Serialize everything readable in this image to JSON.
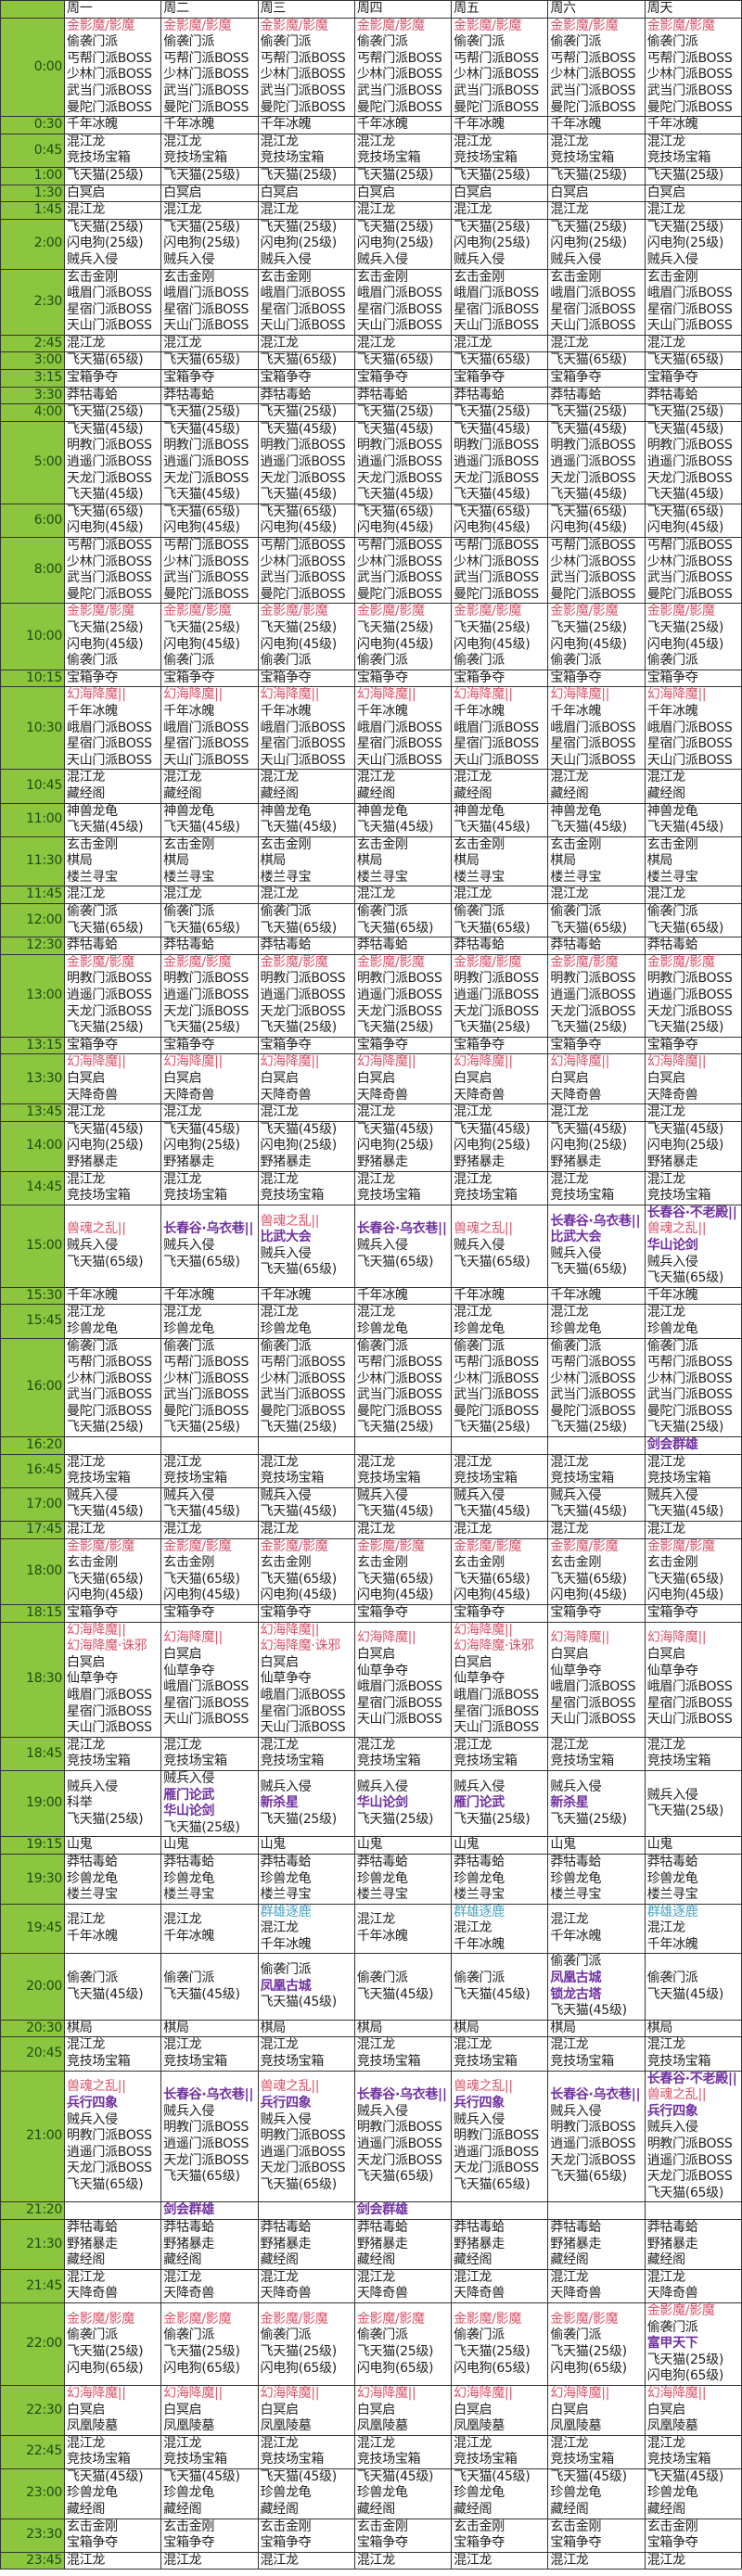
{
  "days": [
    "周一",
    "周二",
    "周三",
    "周四",
    "周五",
    "周六",
    "周天"
  ],
  "colors": {
    "red": "#d9546a",
    "purple": "#7030a0",
    "teal": "#4aa3c0",
    "time_column": "#8cc63e"
  },
  "highlight": {
    "金影魔/影魔": "red",
    "幻海降魔||": "red",
    "幻海降魔·诛邪": "red",
    "兽魂之乱||": "red",
    "长春谷·乌衣巷||": "purple",
    "长春谷·不老殿||": "purple",
    "比武大会": "purple",
    "华山论剑": "purple",
    "兵行四象": "purple",
    "剑会群雄": "purple",
    "雁门论武": "purple",
    "新杀星": "purple",
    "凤凰古城": "purple",
    "锁龙古塔": "purple",
    "富甲天下": "purple",
    "群雄逐鹿": "teal"
  },
  "rows": [
    {
      "time": "0:00",
      "same": [
        "金影魔/影魔",
        "偷袭门派",
        "丐帮门派BOSS",
        "少林门派BOSS",
        "武当门派BOSS",
        "曼陀门派BOSS"
      ]
    },
    {
      "time": "0:30",
      "same": [
        "千年冰魄"
      ]
    },
    {
      "time": "0:45",
      "same": [
        "混江龙",
        "竞技场宝箱"
      ]
    },
    {
      "time": "1:00",
      "same": [
        "飞天猫(25级)"
      ]
    },
    {
      "time": "1:30",
      "same": [
        "白冥启"
      ]
    },
    {
      "time": "1:45",
      "same": [
        "混江龙"
      ]
    },
    {
      "time": "2:00",
      "same": [
        "飞天猫(25级)",
        "闪电狗(25级)",
        "贼兵入侵"
      ]
    },
    {
      "time": "2:30",
      "same": [
        "玄击金刚",
        "峨眉门派BOSS",
        "星宿门派BOSS",
        "天山门派BOSS"
      ]
    },
    {
      "time": "2:45",
      "same": [
        "混江龙"
      ]
    },
    {
      "time": "3:00",
      "same": [
        "飞天猫(65级)"
      ]
    },
    {
      "time": "3:15",
      "same": [
        "宝箱争夺"
      ]
    },
    {
      "time": "3:30",
      "same": [
        "莽牯毒蛤"
      ]
    },
    {
      "time": "4:00",
      "same": [
        "飞天猫(25级)"
      ]
    },
    {
      "time": "5:00",
      "same": [
        "飞天猫(45级)",
        "明教门派BOSS",
        "逍遥门派BOSS",
        "天龙门派BOSS",
        "飞天猫(45级)"
      ]
    },
    {
      "time": "6:00",
      "same": [
        "飞天猫(65级)",
        "闪电狗(45级)"
      ]
    },
    {
      "time": "8:00",
      "same": [
        "丐帮门派BOSS",
        "少林门派BOSS",
        "武当门派BOSS",
        "曼陀门派BOSS"
      ]
    },
    {
      "time": "10:00",
      "same": [
        "金影魔/影魔",
        "飞天猫(25级)",
        "闪电狗(45级)",
        "偷袭门派"
      ]
    },
    {
      "time": "10:15",
      "same": [
        "宝箱争夺"
      ]
    },
    {
      "time": "10:30",
      "same": [
        "幻海降魔||",
        "千年冰魄",
        "峨眉门派BOSS",
        "星宿门派BOSS",
        "天山门派BOSS"
      ]
    },
    {
      "time": "10:45",
      "same": [
        "混江龙",
        "藏经阁"
      ]
    },
    {
      "time": "11:00",
      "same": [
        "神兽龙龟",
        "飞天猫(45级)"
      ]
    },
    {
      "time": "11:30",
      "same": [
        "玄击金刚",
        "棋局",
        "楼兰寻宝"
      ]
    },
    {
      "time": "11:45",
      "same": [
        "混江龙"
      ]
    },
    {
      "time": "12:00",
      "same": [
        "偷袭门派",
        "飞天猫(65级)"
      ]
    },
    {
      "time": "12:30",
      "same": [
        "莽牯毒蛤"
      ]
    },
    {
      "time": "13:00",
      "same": [
        "金影魔/影魔",
        "明教门派BOSS",
        "逍遥门派BOSS",
        "天龙门派BOSS",
        "飞天猫(25级)"
      ]
    },
    {
      "time": "13:15",
      "same": [
        "宝箱争夺"
      ]
    },
    {
      "time": "13:30",
      "same": [
        "幻海降魔||",
        "白冥启",
        "天降奇兽"
      ]
    },
    {
      "time": "13:45",
      "same": [
        "混江龙"
      ]
    },
    {
      "time": "14:00",
      "same": [
        "飞天猫(45级)",
        "闪电狗(25级)",
        "野猪暴走"
      ]
    },
    {
      "time": "14:45",
      "same": [
        "混江龙",
        "竞技场宝箱"
      ]
    },
    {
      "time": "15:00",
      "days": [
        [
          "兽魂之乱||",
          "贼兵入侵",
          "飞天猫(65级)"
        ],
        [
          "长春谷·乌衣巷||",
          "贼兵入侵",
          "飞天猫(65级)"
        ],
        [
          "兽魂之乱||",
          "比武大会",
          "贼兵入侵",
          "飞天猫(65级)"
        ],
        [
          "长春谷·乌衣巷||",
          "贼兵入侵",
          "飞天猫(65级)"
        ],
        [
          "兽魂之乱||",
          "贼兵入侵",
          "飞天猫(65级)"
        ],
        [
          "长春谷·乌衣巷||",
          "比武大会",
          "贼兵入侵",
          "飞天猫(65级)"
        ],
        [
          "长春谷·不老殿||",
          "兽魂之乱||",
          "华山论剑",
          "贼兵入侵",
          "飞天猫(65级)"
        ]
      ]
    },
    {
      "time": "15:30",
      "same": [
        "千年冰魄"
      ]
    },
    {
      "time": "15:45",
      "same": [
        "混江龙",
        "珍兽龙龟"
      ]
    },
    {
      "time": "16:00",
      "same": [
        "偷袭门派",
        "丐帮门派BOSS",
        "少林门派BOSS",
        "武当门派BOSS",
        "曼陀门派BOSS",
        "飞天猫(25级)"
      ]
    },
    {
      "time": "16:20",
      "days": [
        [],
        [],
        [],
        [],
        [],
        [],
        [
          "剑会群雄"
        ]
      ]
    },
    {
      "time": "16:45",
      "same": [
        "混江龙",
        "竞技场宝箱"
      ]
    },
    {
      "time": "17:00",
      "same": [
        "贼兵入侵",
        "飞天猫(45级)"
      ]
    },
    {
      "time": "17:45",
      "same": [
        "混江龙"
      ]
    },
    {
      "time": "18:00",
      "same": [
        "金影魔/影魔",
        "玄击金刚",
        "飞天猫(65级)",
        "闪电狗(45级)"
      ]
    },
    {
      "time": "18:15",
      "same": [
        "宝箱争夺"
      ]
    },
    {
      "time": "18:30",
      "days": [
        [
          "幻海降魔||",
          "幻海降魔·诛邪",
          "白冥启",
          "仙草争夺",
          "峨眉门派BOSS",
          "星宿门派BOSS",
          "天山门派BOSS"
        ],
        [
          "幻海降魔||",
          "白冥启",
          "仙草争夺",
          "峨眉门派BOSS",
          "星宿门派BOSS",
          "天山门派BOSS"
        ],
        [
          "幻海降魔||",
          "幻海降魔·诛邪",
          "白冥启",
          "仙草争夺",
          "峨眉门派BOSS",
          "星宿门派BOSS",
          "天山门派BOSS"
        ],
        [
          "幻海降魔||",
          "白冥启",
          "仙草争夺",
          "峨眉门派BOSS",
          "星宿门派BOSS",
          "天山门派BOSS"
        ],
        [
          "幻海降魔||",
          "幻海降魔·诛邪",
          "白冥启",
          "仙草争夺",
          "峨眉门派BOSS",
          "星宿门派BOSS",
          "天山门派BOSS"
        ],
        [
          "幻海降魔||",
          "白冥启",
          "仙草争夺",
          "峨眉门派BOSS",
          "星宿门派BOSS",
          "天山门派BOSS"
        ],
        [
          "幻海降魔||",
          "白冥启",
          "仙草争夺",
          "峨眉门派BOSS",
          "星宿门派BOSS",
          "天山门派BOSS"
        ]
      ]
    },
    {
      "time": "18:45",
      "same": [
        "混江龙",
        "竞技场宝箱"
      ]
    },
    {
      "time": "19:00",
      "days": [
        [
          "贼兵入侵",
          "科举",
          "飞天猫(25级)"
        ],
        [
          "贼兵入侵",
          "雁门论武",
          "华山论剑",
          "飞天猫(25级)"
        ],
        [
          "贼兵入侵",
          "新杀星",
          "飞天猫(25级)"
        ],
        [
          "贼兵入侵",
          "华山论剑",
          "飞天猫(25级)"
        ],
        [
          "贼兵入侵",
          "雁门论武",
          "飞天猫(25级)"
        ],
        [
          "贼兵入侵",
          "新杀星",
          "飞天猫(25级)"
        ],
        [
          "贼兵入侵",
          "飞天猫(25级)"
        ]
      ]
    },
    {
      "time": "19:15",
      "same": [
        "山鬼"
      ]
    },
    {
      "time": "19:30",
      "same": [
        "莽牯毒蛤",
        "珍兽龙龟",
        "楼兰寻宝"
      ]
    },
    {
      "time": "19:45",
      "days": [
        [
          "混江龙",
          "千年冰魄"
        ],
        [
          "混江龙",
          "千年冰魄"
        ],
        [
          "群雄逐鹿",
          "混江龙",
          "千年冰魄"
        ],
        [
          "混江龙",
          "千年冰魄"
        ],
        [
          "群雄逐鹿",
          "混江龙",
          "千年冰魄"
        ],
        [
          "混江龙",
          "千年冰魄"
        ],
        [
          "群雄逐鹿",
          "混江龙",
          "千年冰魄"
        ]
      ]
    },
    {
      "time": "20:00",
      "days": [
        [
          "偷袭门派",
          "飞天猫(45级)"
        ],
        [
          "偷袭门派",
          "飞天猫(45级)"
        ],
        [
          "偷袭门派",
          "凤凰古城",
          "飞天猫(45级)"
        ],
        [
          "偷袭门派",
          "飞天猫(45级)"
        ],
        [
          "偷袭门派",
          "飞天猫(45级)"
        ],
        [
          "偷袭门派",
          "凤凰古城",
          "锁龙古塔",
          "飞天猫(45级)"
        ],
        [
          "偷袭门派",
          "飞天猫(45级)"
        ]
      ]
    },
    {
      "time": "20:30",
      "same": [
        "棋局"
      ]
    },
    {
      "time": "20:45",
      "same": [
        "混江龙",
        "竞技场宝箱"
      ]
    },
    {
      "time": "21:00",
      "days": [
        [
          "兽魂之乱||",
          "兵行四象",
          "贼兵入侵",
          "明教门派BOSS",
          "逍遥门派BOSS",
          "天龙门派BOSS",
          "飞天猫(65级)"
        ],
        [
          "长春谷·乌衣巷||",
          "贼兵入侵",
          "明教门派BOSS",
          "逍遥门派BOSS",
          "天龙门派BOSS",
          "飞天猫(65级)"
        ],
        [
          "兽魂之乱||",
          "兵行四象",
          "贼兵入侵",
          "明教门派BOSS",
          "逍遥门派BOSS",
          "天龙门派BOSS",
          "飞天猫(65级)"
        ],
        [
          "长春谷·乌衣巷||",
          "贼兵入侵",
          "明教门派BOSS",
          "逍遥门派BOSS",
          "天龙门派BOSS",
          "飞天猫(65级)"
        ],
        [
          "兽魂之乱||",
          "兵行四象",
          "贼兵入侵",
          "明教门派BOSS",
          "逍遥门派BOSS",
          "天龙门派BOSS",
          "飞天猫(65级)"
        ],
        [
          "长春谷·乌衣巷||",
          "贼兵入侵",
          "明教门派BOSS",
          "逍遥门派BOSS",
          "天龙门派BOSS",
          "飞天猫(65级)"
        ],
        [
          "长春谷·不老殿||",
          "兽魂之乱||",
          "兵行四象",
          "贼兵入侵",
          "明教门派BOSS",
          "逍遥门派BOSS",
          "天龙门派BOSS",
          "飞天猫(65级)"
        ]
      ]
    },
    {
      "time": "21:20",
      "days": [
        [],
        [
          "剑会群雄"
        ],
        [],
        [
          "剑会群雄"
        ],
        [],
        [],
        []
      ]
    },
    {
      "time": "21:30",
      "same": [
        "莽牯毒蛤",
        "野猪暴走",
        "藏经阁"
      ]
    },
    {
      "time": "21:45",
      "same": [
        "混江龙",
        "天降奇兽"
      ]
    },
    {
      "time": "22:00",
      "days": [
        [
          "金影魔/影魔",
          "偷袭门派",
          "飞天猫(25级)",
          "闪电狗(65级)"
        ],
        [
          "金影魔/影魔",
          "偷袭门派",
          "飞天猫(25级)",
          "闪电狗(65级)"
        ],
        [
          "金影魔/影魔",
          "偷袭门派",
          "飞天猫(25级)",
          "闪电狗(65级)"
        ],
        [
          "金影魔/影魔",
          "偷袭门派",
          "飞天猫(25级)",
          "闪电狗(65级)"
        ],
        [
          "金影魔/影魔",
          "偷袭门派",
          "飞天猫(25级)",
          "闪电狗(65级)"
        ],
        [
          "金影魔/影魔",
          "偷袭门派",
          "飞天猫(25级)",
          "闪电狗(65级)"
        ],
        [
          "金影魔/影魔",
          "偷袭门派",
          "富甲天下",
          "飞天猫(25级)",
          "闪电狗(65级)"
        ]
      ]
    },
    {
      "time": "22:30",
      "same": [
        "幻海降魔||",
        "白冥启",
        "凤凰陵墓"
      ]
    },
    {
      "time": "22:45",
      "same": [
        "混江龙",
        "竞技场宝箱"
      ]
    },
    {
      "time": "23:00",
      "same": [
        "飞天猫(45级)",
        "珍兽龙龟",
        "藏经阁"
      ]
    },
    {
      "time": "23:30",
      "same": [
        "玄击金刚",
        "宝箱争夺"
      ]
    },
    {
      "time": "23:45",
      "same": [
        "混江龙"
      ]
    }
  ]
}
